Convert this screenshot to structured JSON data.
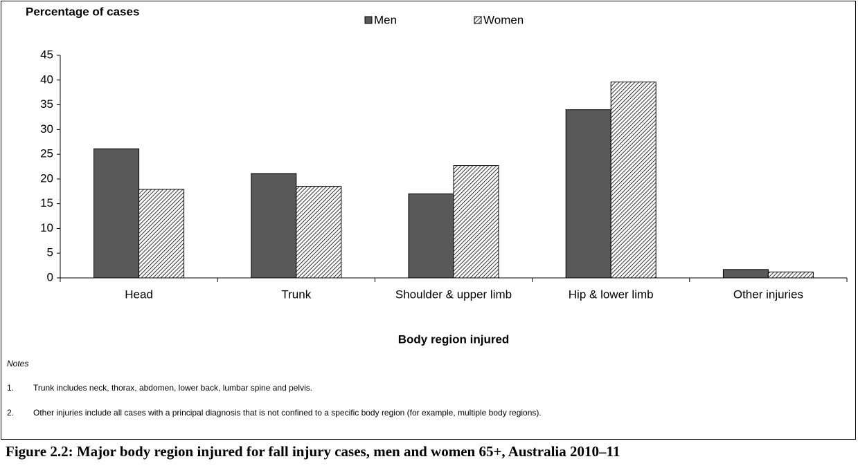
{
  "chart_data": {
    "type": "bar",
    "y_label": "Percentage of cases",
    "x_label": "Body region injured",
    "categories": [
      "Head",
      "Trunk",
      "Shoulder & upper limb",
      "Hip & lower limb",
      "Other injuries"
    ],
    "series": [
      {
        "name": "Men",
        "color": "#595959",
        "values": [
          26.1,
          21.1,
          17.0,
          34.0,
          1.7
        ]
      },
      {
        "name": "Women",
        "color": "#000000",
        "pattern": "diagonal",
        "values": [
          17.9,
          18.5,
          22.7,
          39.6,
          1.2
        ]
      }
    ],
    "ylim": [
      0,
      45
    ],
    "yticks": [
      0,
      5,
      10,
      15,
      20,
      25,
      30,
      35,
      40,
      45
    ],
    "grid": false,
    "legend": "top"
  },
  "notes": {
    "heading": "Notes",
    "items": [
      {
        "number": "1.",
        "text": "Trunk includes neck, thorax, abdomen, lower back, lumbar spine and pelvis."
      },
      {
        "number": "2.",
        "text": "Other injuries include all cases with a principal diagnosis that is not confined to a specific body region (for example, multiple body regions)."
      }
    ]
  },
  "caption": "Figure 2.2: Major body region injured for fall injury cases, men and women 65+, Australia 2010–11"
}
